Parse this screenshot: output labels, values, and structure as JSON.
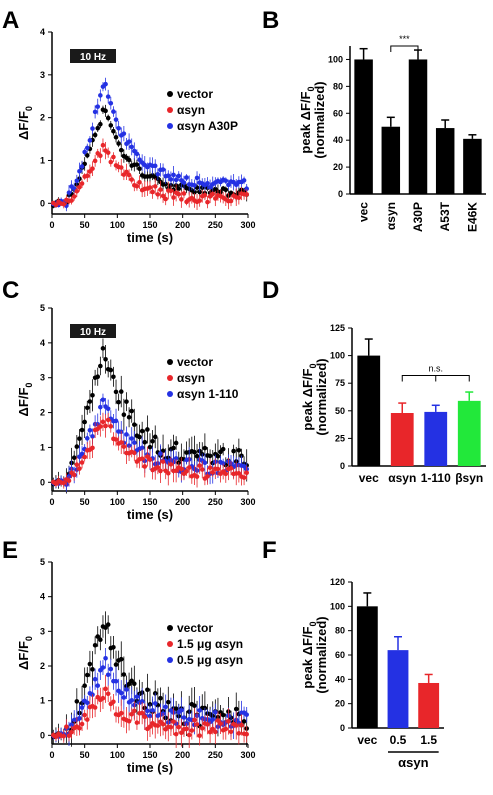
{
  "panels": {
    "A": {
      "letter": "A"
    },
    "B": {
      "letter": "B"
    },
    "C": {
      "letter": "C"
    },
    "D": {
      "letter": "D"
    },
    "E": {
      "letter": "E"
    },
    "F": {
      "letter": "F"
    }
  },
  "chart_data": [
    {
      "id": "A",
      "type": "scatter",
      "stim_label": "10 Hz",
      "xlabel": "time (s)",
      "ylabel": "ΔF/F0",
      "xlim": [
        0,
        300
      ],
      "ylim": [
        -0.25,
        4
      ],
      "xticks": [
        0,
        50,
        100,
        150,
        200,
        250,
        300
      ],
      "yticks": [
        0,
        1,
        2,
        3,
        4
      ],
      "legend": "right",
      "series": [
        {
          "name": "vector",
          "color": "#000000",
          "peak": 2.2,
          "base": 0.25,
          "err": 0.12
        },
        {
          "name": "αsyn",
          "color": "#e8262a",
          "peak": 1.35,
          "base": 0.1,
          "err": 0.15
        },
        {
          "name": "αsyn A30P",
          "color": "#2431e3",
          "peak": 2.85,
          "base": 0.45,
          "err": 0.15
        }
      ]
    },
    {
      "id": "B",
      "type": "bar",
      "ylabel": "peak ΔF/F0 (normalized)",
      "ylim": [
        0,
        110
      ],
      "yticks": [
        0,
        20,
        40,
        60,
        80,
        100
      ],
      "categories": [
        "vec",
        "αsyn",
        "A30P",
        "A53T",
        "E46K"
      ],
      "values": [
        100,
        50,
        100,
        49,
        41
      ],
      "errors": [
        8,
        7,
        7,
        6,
        3
      ],
      "colors": [
        "#000000",
        "#000000",
        "#000000",
        "#000000",
        "#000000"
      ],
      "significance": {
        "label": "***",
        "from": 1,
        "to": 2,
        "y": 110
      }
    },
    {
      "id": "C",
      "type": "scatter",
      "stim_label": "10 Hz",
      "xlabel": "time (s)",
      "ylabel": "ΔF/F0",
      "xlim": [
        0,
        300
      ],
      "ylim": [
        -0.25,
        5
      ],
      "xticks": [
        0,
        50,
        100,
        150,
        200,
        250,
        300
      ],
      "yticks": [
        0,
        1,
        2,
        3,
        4,
        5
      ],
      "legend": "right",
      "series": [
        {
          "name": "vector",
          "color": "#000000",
          "peak": 3.9,
          "base": 0.65,
          "err": 0.35
        },
        {
          "name": "αsyn",
          "color": "#e8262a",
          "peak": 1.85,
          "base": 0.25,
          "err": 0.25
        },
        {
          "name": "αsyn 1-110",
          "color": "#2431e3",
          "peak": 2.35,
          "base": 0.4,
          "err": 0.25
        }
      ]
    },
    {
      "id": "D",
      "type": "bar",
      "ylabel": "peak ΔF/F0 (normalized)",
      "ylim": [
        0,
        125
      ],
      "yticks": [
        0,
        25,
        50,
        75,
        100,
        125
      ],
      "categories": [
        "vec",
        "αsyn",
        "1-110",
        "βsyn"
      ],
      "values": [
        100,
        48,
        49,
        59
      ],
      "errors": [
        15,
        9,
        6,
        8
      ],
      "colors": [
        "#000000",
        "#e8262a",
        "#2431e3",
        "#22e83a"
      ],
      "significance": {
        "label": "n.s.",
        "from": 1,
        "to": 3,
        "y": 82
      }
    },
    {
      "id": "E",
      "type": "scatter",
      "xlabel": "time (s)",
      "ylabel": "ΔF/F0",
      "xlim": [
        0,
        300
      ],
      "ylim": [
        -0.25,
        5
      ],
      "xticks": [
        0,
        50,
        100,
        150,
        200,
        250,
        300
      ],
      "yticks": [
        0,
        1,
        2,
        3,
        4,
        5
      ],
      "legend": "right",
      "series": [
        {
          "name": "vector",
          "color": "#000000",
          "peak": 3.3,
          "base": 0.5,
          "err": 0.4
        },
        {
          "name": "1.5 μg αsyn",
          "color": "#e8262a",
          "peak": 1.2,
          "base": 0.2,
          "err": 0.3
        },
        {
          "name": "0.5 μg αsyn",
          "color": "#2431e3",
          "peak": 2.1,
          "base": 0.45,
          "err": 0.3
        }
      ]
    },
    {
      "id": "F",
      "type": "bar",
      "ylabel": "peak ΔF/F0 (normalized)",
      "ylim": [
        0,
        120
      ],
      "yticks": [
        0,
        20,
        40,
        60,
        80,
        100,
        120
      ],
      "categories": [
        "vec",
        "0.5",
        "1.5"
      ],
      "values": [
        100,
        64,
        37
      ],
      "errors": [
        11,
        11,
        7
      ],
      "colors": [
        "#000000",
        "#2431e3",
        "#e8262a"
      ],
      "group_label": {
        "label": "αsyn",
        "from": 1,
        "to": 2
      }
    }
  ]
}
